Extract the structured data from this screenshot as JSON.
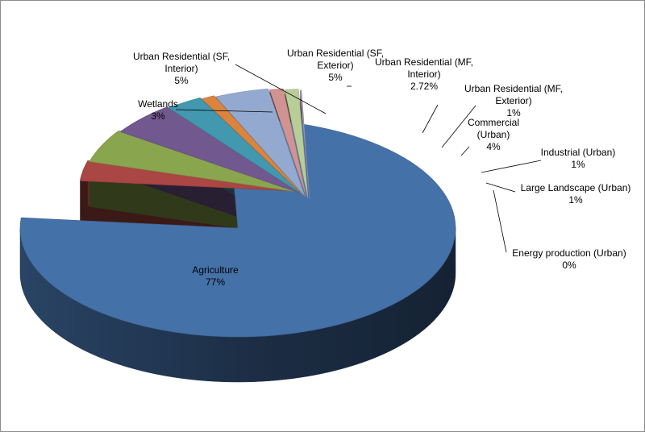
{
  "chart_data": {
    "type": "pie",
    "style": "3d-exploded",
    "title": "",
    "legend": "none",
    "slices": [
      {
        "label": [
          "Agriculture"
        ],
        "value": 77,
        "value_text": "77%",
        "color": "#4571A9"
      },
      {
        "label": [
          "Wetlands"
        ],
        "value": 3,
        "value_text": "3%",
        "color": "#AA4643"
      },
      {
        "label": [
          "Urban Residential (SF,",
          "Interior)"
        ],
        "value": 5,
        "value_text": "5%",
        "color": "#89A54E"
      },
      {
        "label": [
          "Urban Residential (SF,",
          "Exterior)"
        ],
        "value": 5,
        "value_text": "5%",
        "color": "#71588F"
      },
      {
        "label": [
          "Urban Residential (MF,",
          "Interior)"
        ],
        "value": 2.72,
        "value_text": "2.72%",
        "color": "#4198AF"
      },
      {
        "label": [
          "Urban Residential (MF,",
          "Exterior)"
        ],
        "value": 1,
        "value_text": "1%",
        "color": "#DB843D"
      },
      {
        "label": [
          "Commercial",
          "(Urban)"
        ],
        "value": 4,
        "value_text": "4%",
        "color": "#93A9CF"
      },
      {
        "label": [
          "Industrial (Urban)"
        ],
        "value": 1,
        "value_text": "1%",
        "color": "#D19392"
      },
      {
        "label": [
          "Large Landscape (Urban)"
        ],
        "value": 1,
        "value_text": "1%",
        "color": "#B9CD96"
      },
      {
        "label": [
          "Energy production (Urban)"
        ],
        "value": 0,
        "value_text": "0%",
        "color": "#A99BBD"
      }
    ]
  }
}
